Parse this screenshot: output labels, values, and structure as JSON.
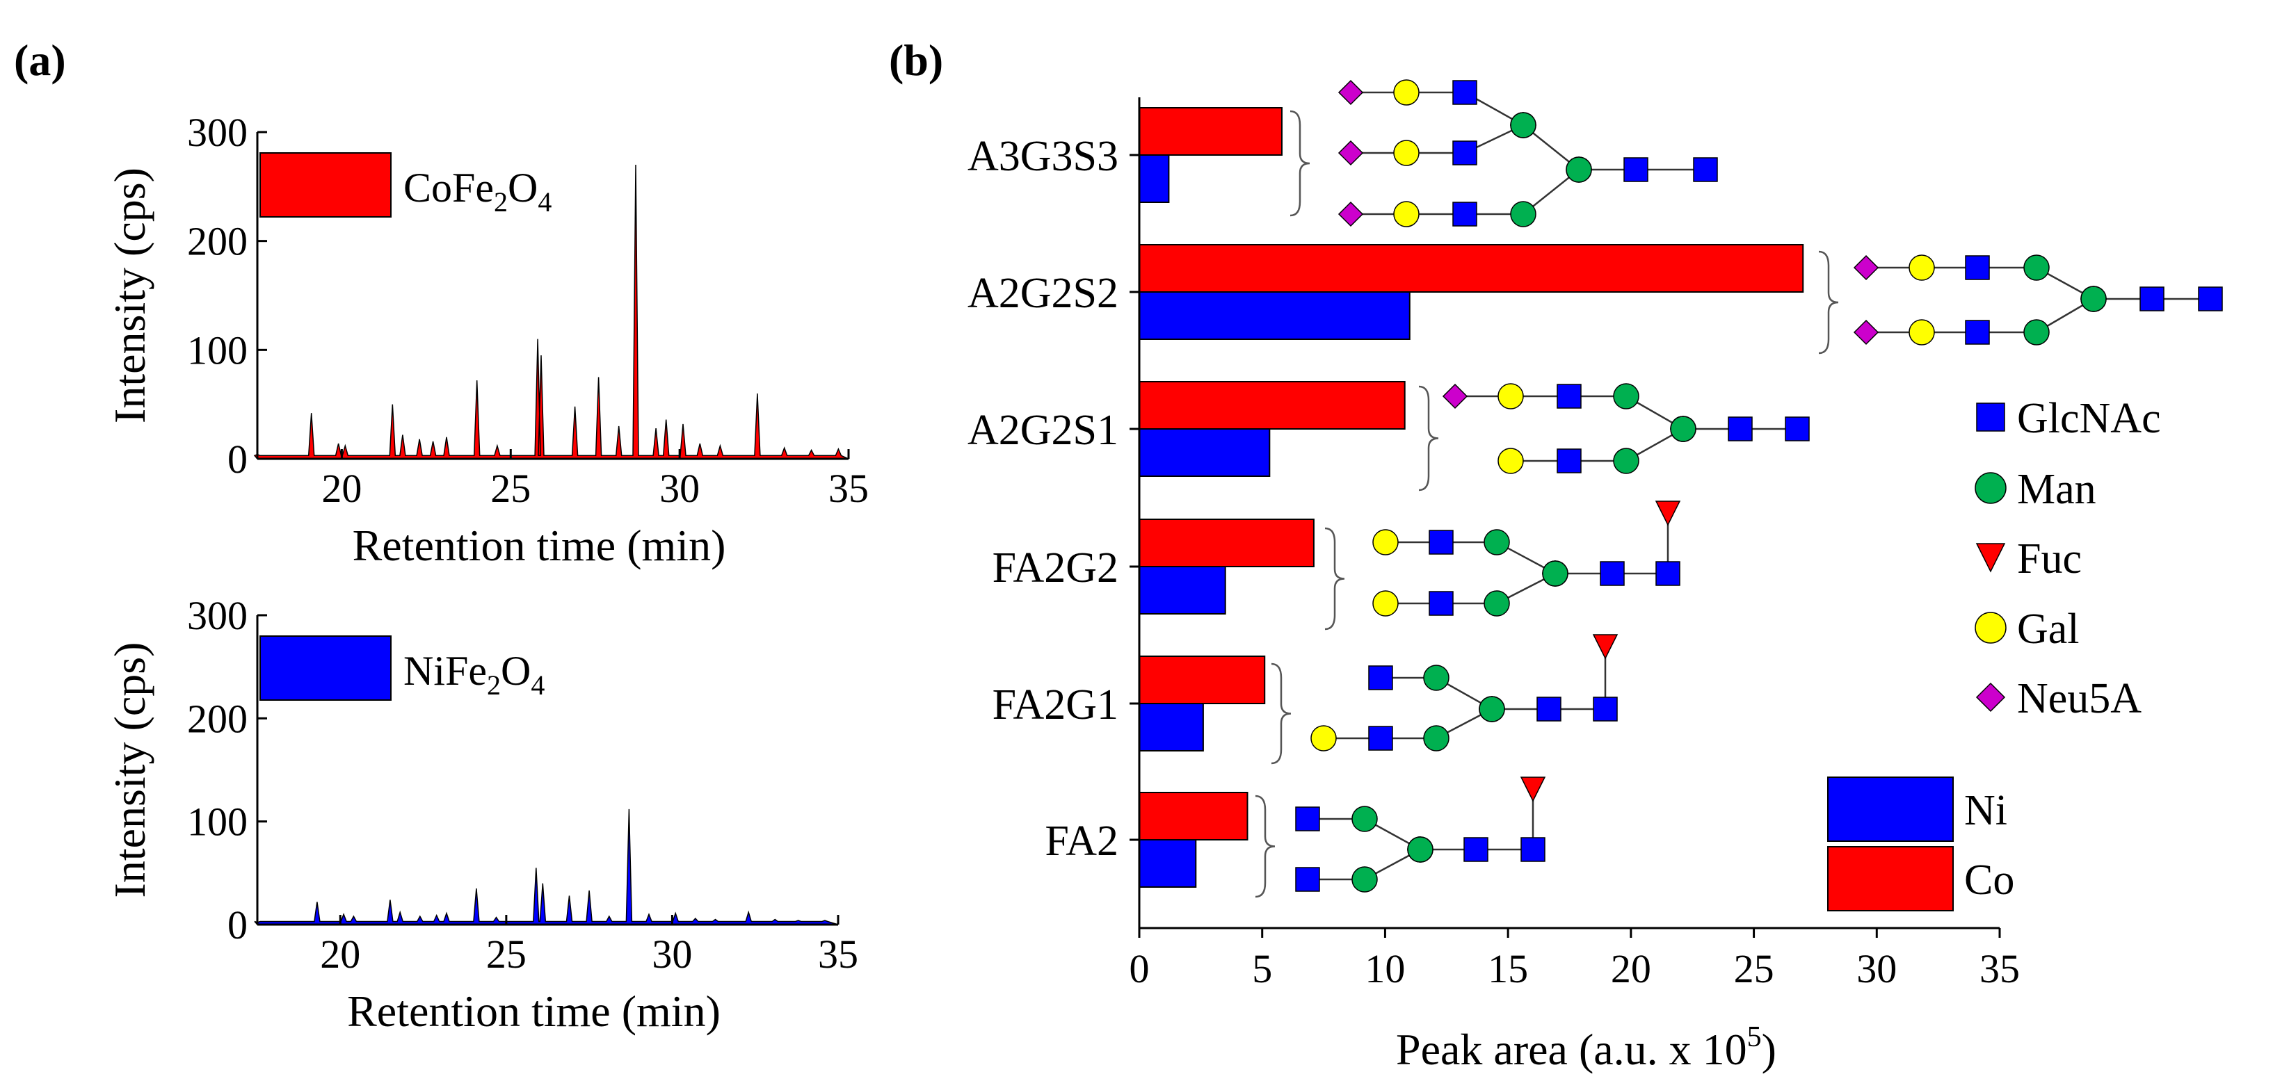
{
  "panels": {
    "a_label": "(a)",
    "b_label": "(b)"
  },
  "colors": {
    "red": "#ff0000",
    "blue": "#0000ff",
    "green": "#00b050",
    "yellow": "#ffff00",
    "magenta": "#cc00cc",
    "axis": "#000000"
  },
  "chart_data": [
    {
      "id": "chromatogram-co",
      "type": "area",
      "title": "",
      "xlabel": "Retention time (min)",
      "ylabel": "Intensity (cps)",
      "xlim": [
        17.5,
        35
      ],
      "ylim": [
        0,
        300
      ],
      "xticks": [
        20,
        25,
        30,
        35
      ],
      "yticks": [
        0,
        100,
        200,
        300
      ],
      "legend": {
        "text": "CoFe",
        "sub1": "2",
        "mid": "O",
        "sub2": "4",
        "position": "top-left"
      },
      "color": "#ff0000",
      "series": [
        {
          "x": [
            17.5,
            19.1,
            19.9,
            20.1,
            21.5,
            21.8,
            22.3,
            22.7,
            23.1,
            24.0,
            24.6,
            25.8,
            25.9,
            26.9,
            27.6,
            28.2,
            28.7,
            29.3,
            29.6,
            30.1,
            30.6,
            31.2,
            32.3,
            33.1,
            33.9,
            34.7
          ],
          "y": [
            4,
            42,
            14,
            12,
            50,
            22,
            18,
            16,
            20,
            72,
            12,
            110,
            95,
            48,
            75,
            30,
            270,
            28,
            36,
            32,
            14,
            12,
            60,
            10,
            8,
            9
          ]
        }
      ]
    },
    {
      "id": "chromatogram-ni",
      "type": "area",
      "title": "",
      "xlabel": "Retention time (min)",
      "ylabel": "Intensity (cps)",
      "xlim": [
        17.5,
        35
      ],
      "ylim": [
        0,
        300
      ],
      "xticks": [
        20,
        25,
        30,
        35
      ],
      "yticks": [
        0,
        100,
        200,
        300
      ],
      "legend": {
        "text": "NiFe",
        "sub1": "2",
        "mid": "O",
        "sub2": "4",
        "position": "top-left"
      },
      "color": "#0000ff",
      "series": [
        {
          "x": [
            17.5,
            19.3,
            20.1,
            20.4,
            21.5,
            21.8,
            22.4,
            22.9,
            23.2,
            24.1,
            24.7,
            25.9,
            26.1,
            26.9,
            27.5,
            28.1,
            28.7,
            29.3,
            30.1,
            30.7,
            31.3,
            32.3,
            33.1,
            33.8,
            34.6
          ],
          "y": [
            2,
            22,
            10,
            8,
            24,
            12,
            8,
            9,
            11,
            35,
            7,
            55,
            40,
            28,
            33,
            8,
            112,
            10,
            11,
            6,
            5,
            12,
            5,
            4,
            4
          ]
        }
      ]
    },
    {
      "id": "glycan-bars",
      "type": "bar",
      "orientation": "horizontal",
      "title": "",
      "xlabel": "Peak area (a.u. x 10",
      "xlabel_sup": "5",
      "xlabel_close": ")",
      "ylabel": "",
      "xlim": [
        0,
        35
      ],
      "xticks": [
        0,
        5,
        10,
        15,
        20,
        25,
        30,
        35
      ],
      "categories": [
        "A3G3S3",
        "A2G2S2",
        "A2G2S1",
        "FA2G2",
        "FA2G1",
        "FA2"
      ],
      "series": [
        {
          "name": "Co",
          "color": "#ff0000",
          "values": [
            5.8,
            27.0,
            10.8,
            7.1,
            5.1,
            4.4
          ]
        },
        {
          "name": "Ni",
          "color": "#0000ff",
          "values": [
            1.2,
            11.0,
            5.3,
            3.5,
            2.6,
            2.3
          ]
        }
      ],
      "legend_position": "bottom-right"
    }
  ],
  "symbol_legend": [
    {
      "symbol": "square",
      "color": "#0000ff",
      "label": "GlcNAc"
    },
    {
      "symbol": "circle",
      "color": "#00b050",
      "label": "Man"
    },
    {
      "symbol": "triangle",
      "color": "#ff0000",
      "label": "Fuc"
    },
    {
      "symbol": "circle",
      "color": "#ffff00",
      "label": "Gal"
    },
    {
      "symbol": "diamond",
      "color": "#cc00cc",
      "label": "Neu5A"
    }
  ]
}
